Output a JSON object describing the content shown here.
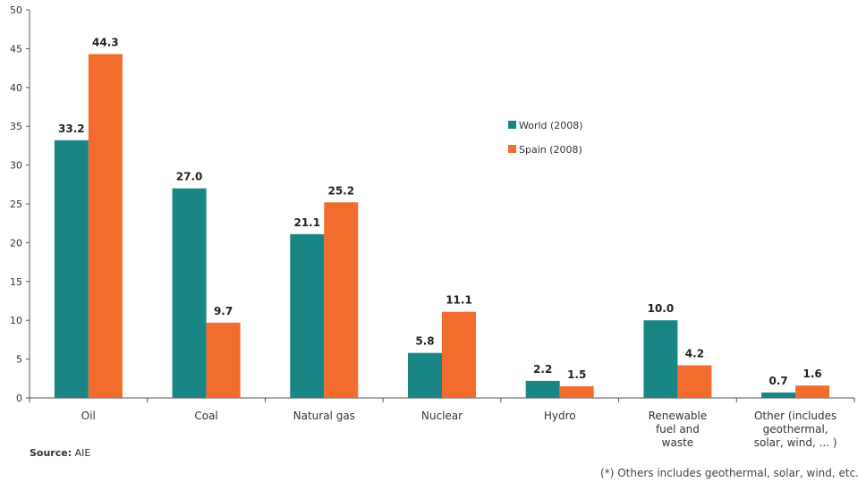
{
  "chart_data": {
    "type": "bar",
    "categories": [
      [
        "Oil"
      ],
      [
        "Coal"
      ],
      [
        "Natural gas"
      ],
      [
        "Nuclear"
      ],
      [
        "Hydro"
      ],
      [
        "Renewable",
        "fuel and",
        "waste"
      ],
      [
        "Other (includes",
        "geothermal,",
        "solar, wind, ... )"
      ]
    ],
    "series": [
      {
        "name": "World (2008)",
        "color": "#1a8585",
        "values": [
          33.2,
          27.0,
          21.1,
          5.8,
          2.2,
          10.0,
          0.7
        ]
      },
      {
        "name": "Spain  (2008)",
        "color": "#f26c2e",
        "values": [
          44.3,
          9.7,
          25.2,
          11.1,
          1.5,
          4.2,
          1.6
        ]
      }
    ],
    "ylim": [
      0,
      50
    ],
    "yticks": [
      0,
      5,
      10,
      15,
      20,
      25,
      30,
      35,
      40,
      45,
      50
    ],
    "legend_position": "right-middle",
    "grid": false,
    "title": "",
    "xlabel": "",
    "ylabel": ""
  },
  "source": {
    "label": "Source:",
    "value": " AIE"
  },
  "footnote": "(*) Others includes geothermal, solar, wind, etc."
}
